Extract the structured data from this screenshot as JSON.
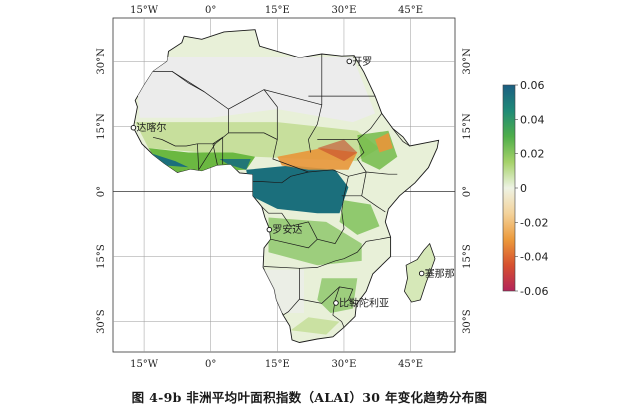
{
  "map": {
    "lon_ticks": [
      {
        "lon": -15,
        "label": "15°W"
      },
      {
        "lon": 0,
        "label": "0°"
      },
      {
        "lon": 15,
        "label": "15°E"
      },
      {
        "lon": 30,
        "label": "30°E"
      },
      {
        "lon": 45,
        "label": "45°E"
      }
    ],
    "lat_ticks": [
      {
        "lat": 30,
        "label": "30°N"
      },
      {
        "lat": 15,
        "label": "15°N"
      },
      {
        "lat": 0,
        "label": "0°"
      },
      {
        "lat": -15,
        "label": "15°S"
      },
      {
        "lat": -30,
        "label": "30°S"
      }
    ],
    "extent": {
      "lon_min": -22,
      "lon_max": 55,
      "lat_min": -37,
      "lat_max": 40
    },
    "cities": [
      {
        "name": "开罗",
        "lon": 31.2,
        "lat": 30.0
      },
      {
        "name": "达喀尔",
        "lon": -17.4,
        "lat": 14.7
      },
      {
        "name": "罗安达",
        "lon": 13.2,
        "lat": -8.8
      },
      {
        "name": "塞那那利佛",
        "lon": 47.5,
        "lat": -18.9
      },
      {
        "name": "比勒陀利亚",
        "lon": 28.2,
        "lat": -25.7
      }
    ],
    "colors": {
      "land_base": "#e8f0d8",
      "desert": "#ececec",
      "border": "#1a1a1a",
      "strong_positive": "#1b6f7c",
      "positive": "#6bb841",
      "light_positive": "#c7df9c",
      "negative": "#e8963a",
      "strong_negative": "#c74a2d"
    }
  },
  "colorbar": {
    "min": -0.06,
    "max": 0.06,
    "ticks": [
      "0.06",
      "0.04",
      "0.02",
      "0",
      "-0.02",
      "-0.04",
      "-0.06"
    ],
    "stops": [
      "#1b5e82",
      "#1f8a77",
      "#4fae4a",
      "#a6d26a",
      "#eef3e4",
      "#f3d29a",
      "#ec9a3c",
      "#d6502f",
      "#b4245a"
    ]
  },
  "caption": "图 4-9b 非洲平均叶面积指数（ALAI）30 年变化趋势分布图"
}
